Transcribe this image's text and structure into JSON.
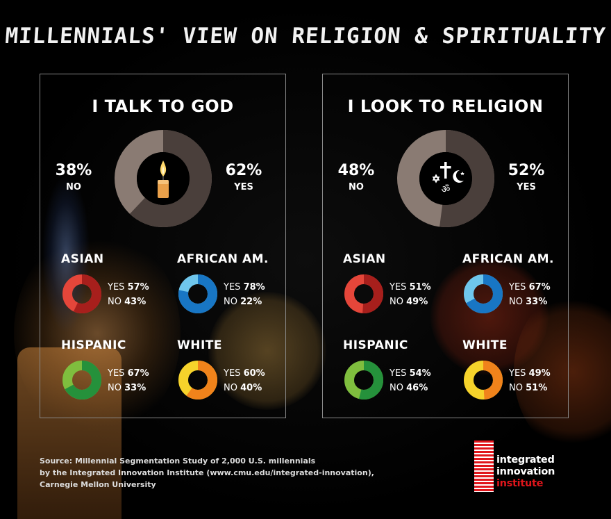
{
  "title": "MILLENNIALS' VIEW ON RELIGION & SPIRITUALITY",
  "colors": {
    "big_yes": "#4a3f3b",
    "big_no": "#8a7b73",
    "asian": [
      "#a71f1c",
      "#e5463a"
    ],
    "african_am": [
      "#1876c4",
      "#6fc6ec"
    ],
    "hispanic": [
      "#25913b",
      "#7fbe3e"
    ],
    "white": [
      "#f0831b",
      "#f6d32b"
    ],
    "logo_red": "#e0151b"
  },
  "chart_data": [
    {
      "type": "pie",
      "title": "I TALK TO GOD",
      "center_icon": "candle-icon",
      "overall": {
        "yes": 62,
        "no": 38,
        "yes_label": "YES",
        "no_label": "NO",
        "yes_text": "62%",
        "no_text": "38%"
      },
      "groups": [
        {
          "name": "ASIAN",
          "yes": 57,
          "no": 43,
          "yes_text": "57%",
          "no_text": "43%"
        },
        {
          "name": "AFRICAN AM.",
          "yes": 78,
          "no": 22,
          "yes_text": "78%",
          "no_text": "22%"
        },
        {
          "name": "HISPANIC",
          "yes": 67,
          "no": 33,
          "yes_text": "67%",
          "no_text": "33%"
        },
        {
          "name": "WHITE",
          "yes": 60,
          "no": 40,
          "yes_text": "60%",
          "no_text": "40%"
        }
      ]
    },
    {
      "type": "pie",
      "title": "I LOOK TO RELIGION",
      "center_icon": "religious-symbols-icon",
      "overall": {
        "yes": 52,
        "no": 48,
        "yes_label": "YES",
        "no_label": "NO",
        "yes_text": "52%",
        "no_text": "48%"
      },
      "groups": [
        {
          "name": "ASIAN",
          "yes": 51,
          "no": 49,
          "yes_text": "51%",
          "no_text": "49%"
        },
        {
          "name": "AFRICAN AM.",
          "yes": 67,
          "no": 33,
          "yes_text": "67%",
          "no_text": "33%"
        },
        {
          "name": "HISPANIC",
          "yes": 54,
          "no": 46,
          "yes_text": "54%",
          "no_text": "46%"
        },
        {
          "name": "WHITE",
          "yes": 49,
          "no": 51,
          "yes_text": "49%",
          "no_text": "51%"
        }
      ]
    }
  ],
  "labels": {
    "yes": "YES",
    "no": "NO"
  },
  "footer": {
    "line1": "Source: Millennial Segmentation Study of 2,000 U.S. millennials",
    "line2": "by the Integrated Innovation Institute (www.cmu.edu/integrated-innovation),",
    "line3": "Carnegie Mellon University"
  },
  "logo": {
    "line1": "integrated",
    "line2": "innovation",
    "line3": "institute"
  }
}
